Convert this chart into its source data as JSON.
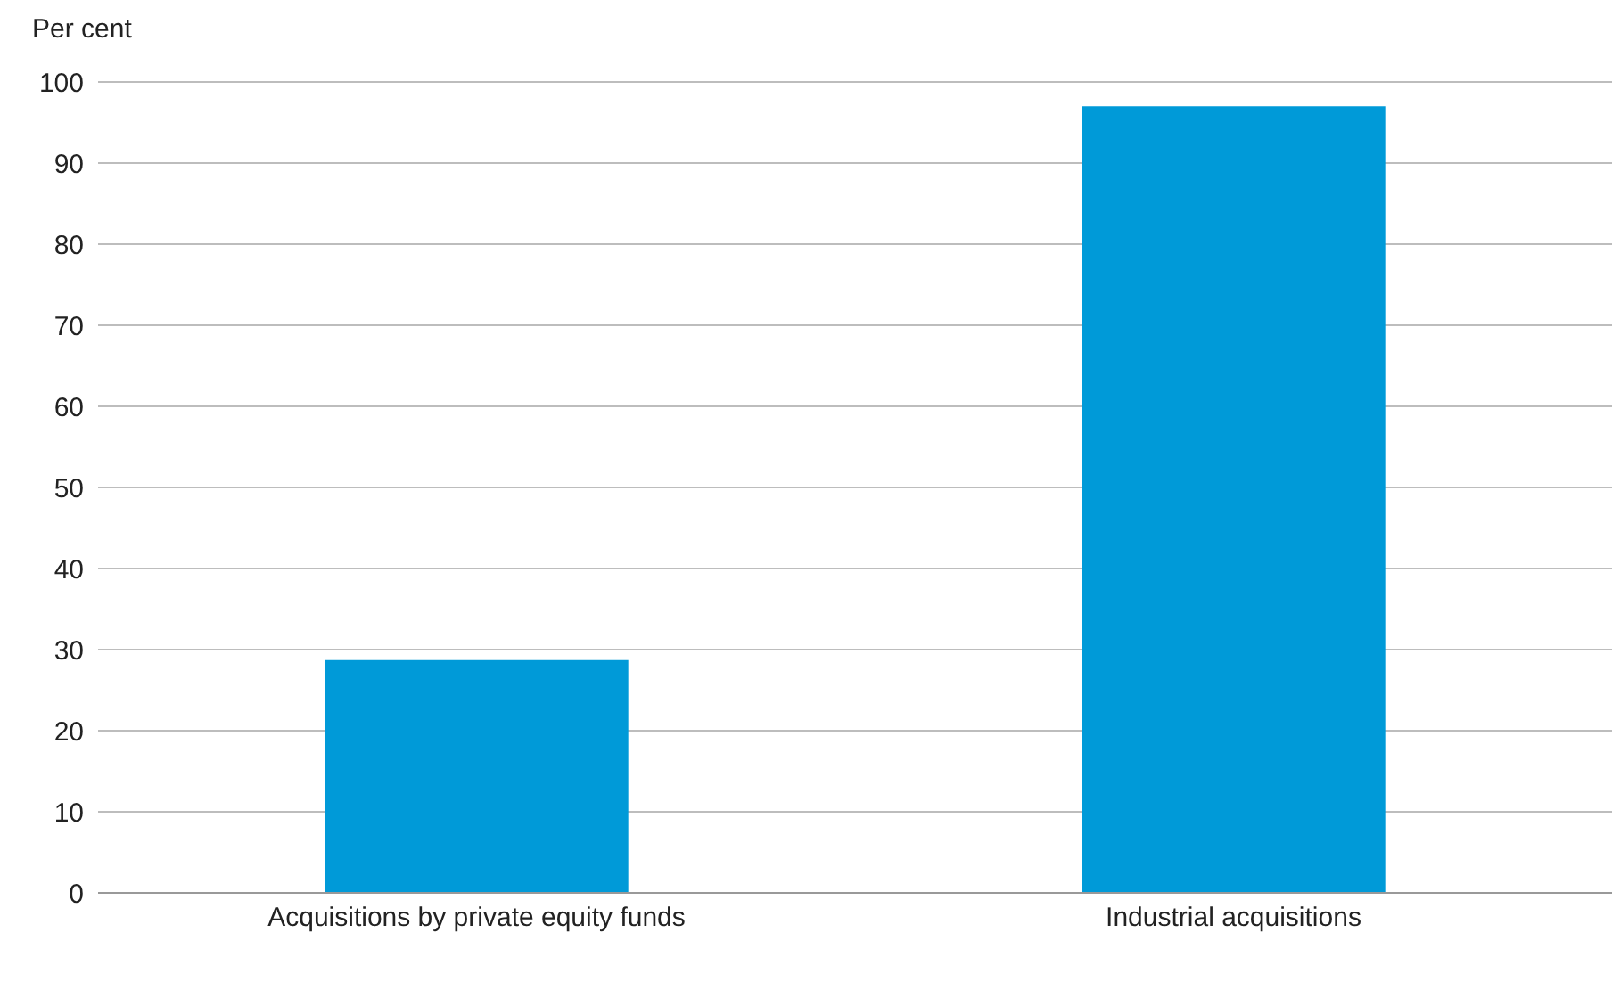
{
  "chart_data": {
    "type": "bar",
    "ylabel": "Per cent",
    "categories": [
      "Acquisitions by private equity funds",
      "Industrial acquisitions"
    ],
    "values": [
      28.7,
      97
    ],
    "color": "#009ad8",
    "ylim": [
      0,
      100
    ],
    "yticks": [
      0,
      10,
      20,
      30,
      40,
      50,
      60,
      70,
      80,
      90,
      100
    ],
    "grid": "y"
  }
}
